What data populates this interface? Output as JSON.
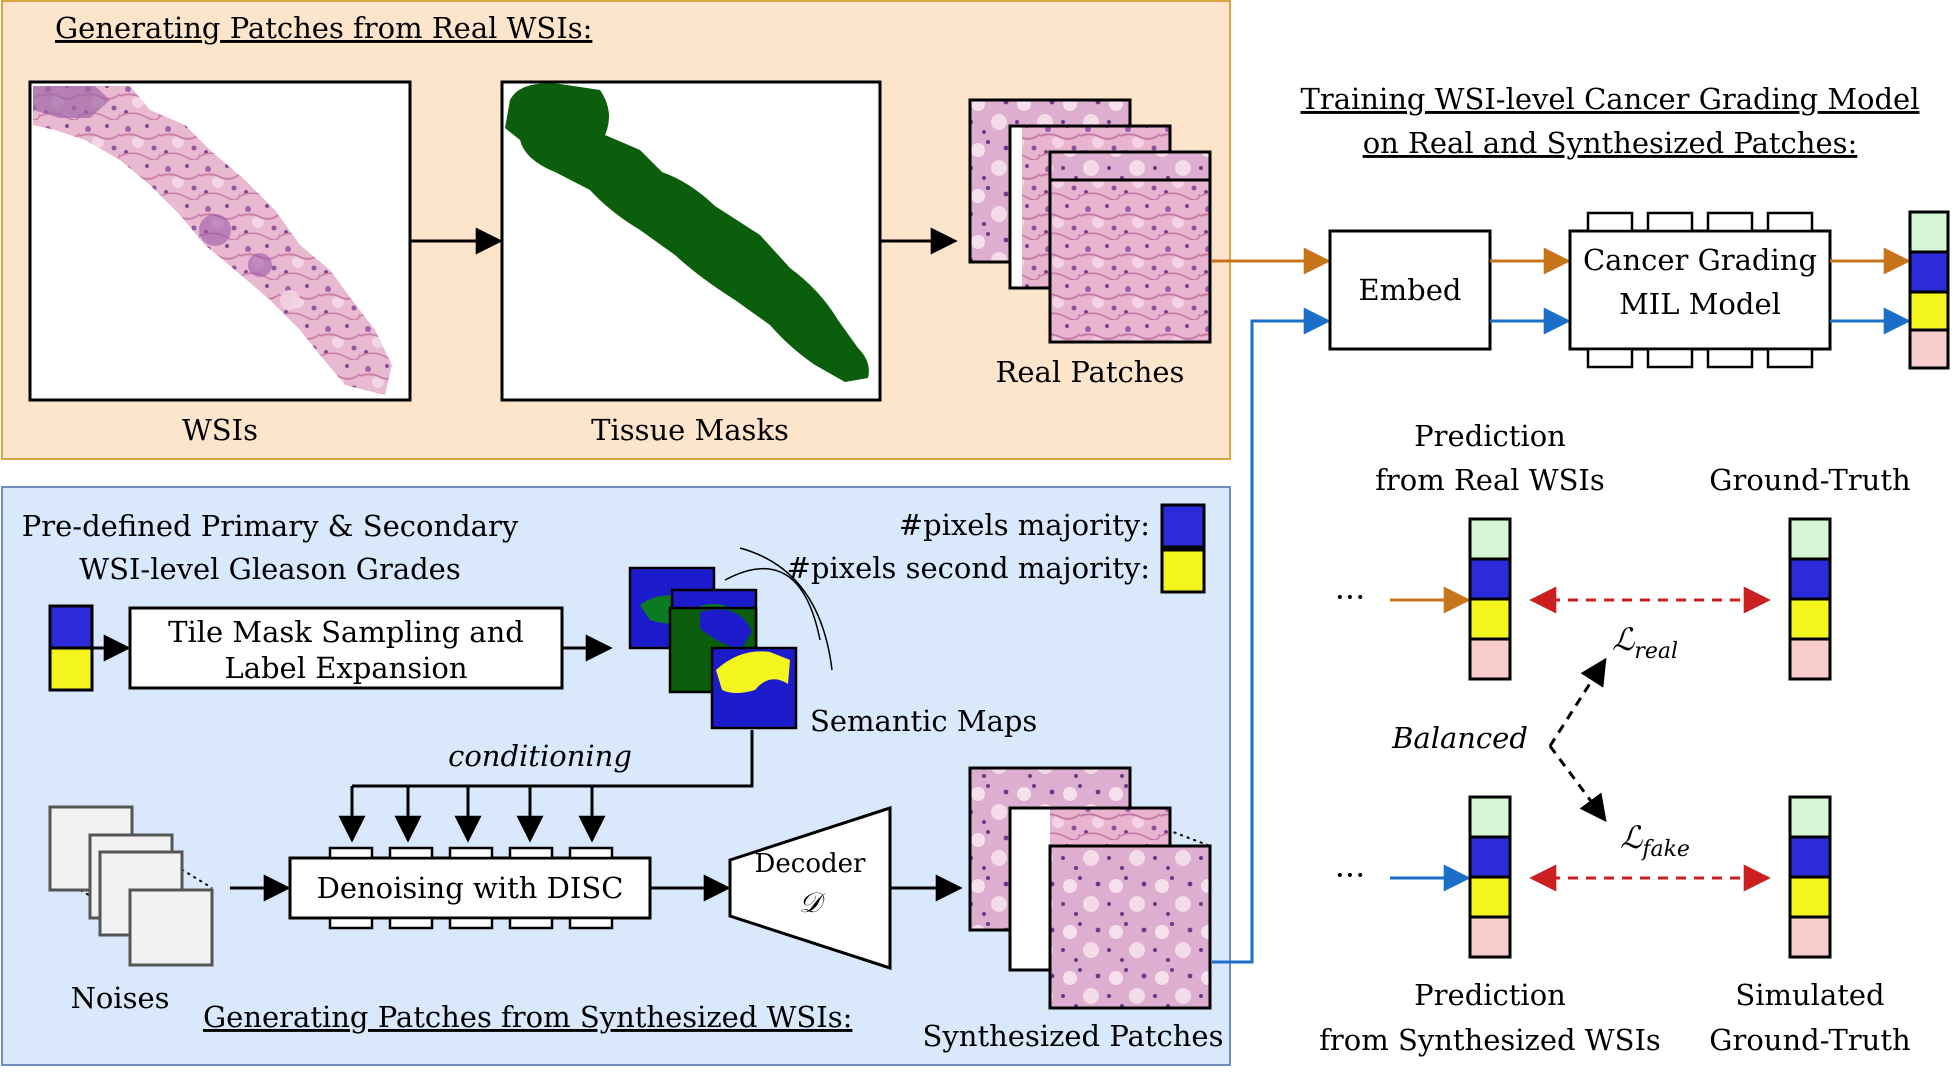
{
  "colors": {
    "real_panel_fill": "#fde5cc",
    "real_panel_stroke": "#d9a441",
    "synth_panel_fill": "#dae8fc",
    "synth_panel_stroke": "#6c8ebf",
    "mask_green": "#0b5e0b",
    "real_flow": "#c8741a",
    "synth_flow": "#1a6fc8",
    "dashed_red": "#cc1f1f",
    "grade_green": "#d5f5d5",
    "grade_blue": "#2b2bd9",
    "grade_yellow": "#f5f51e",
    "grade_pink": "#f8cecc",
    "tissue_pink": "#d98fb5",
    "tissue_purple": "#8a4f9a"
  },
  "real_section": {
    "title": "Generating Patches from Real WSIs:",
    "wsi_label": "WSIs",
    "mask_label": "Tissue Masks",
    "patches_label": "Real Patches"
  },
  "synth_section": {
    "title": "Generating Patches from Synthesized WSIs:",
    "grades_label_line1": "Pre-defined Primary & Secondary",
    "grades_label_line2": "WSI-level Gleason Grades",
    "sampling_line1": "Tile Mask Sampling and",
    "sampling_line2": "Label Expansion",
    "majority_label": "#pixels majority:",
    "second_majority_label": "#pixels second majority:",
    "semantic_maps_label": "Semantic Maps",
    "conditioning_label": "conditioning",
    "noises_label": "Noises",
    "denoising_label": "Denoising with DISC",
    "decoder_label": "Decoder",
    "decoder_symbol": "𝒟",
    "synth_patches_label": "Synthesized Patches"
  },
  "training": {
    "title_line1": "Training WSI-level Cancer Grading Model",
    "title_line2": "on Real and Synthesized Patches:",
    "embed_label": "Embed",
    "model_line1": "Cancer Grading",
    "model_line2": "MIL Model"
  },
  "loss": {
    "pred_real_line1": "Prediction",
    "pred_real_line2": "from Real WSIs",
    "gt_label": "Ground-Truth",
    "ellipsis": "···",
    "balanced_label": "Balanced",
    "loss_real_main": "ℒ",
    "loss_real_sub": "real",
    "loss_fake_main": "ℒ",
    "loss_fake_sub": "fake",
    "pred_synth_line1": "Prediction",
    "pred_synth_line2": "from Synthesized WSIs",
    "sim_gt_line1": "Simulated",
    "sim_gt_line2": "Ground-Truth"
  }
}
